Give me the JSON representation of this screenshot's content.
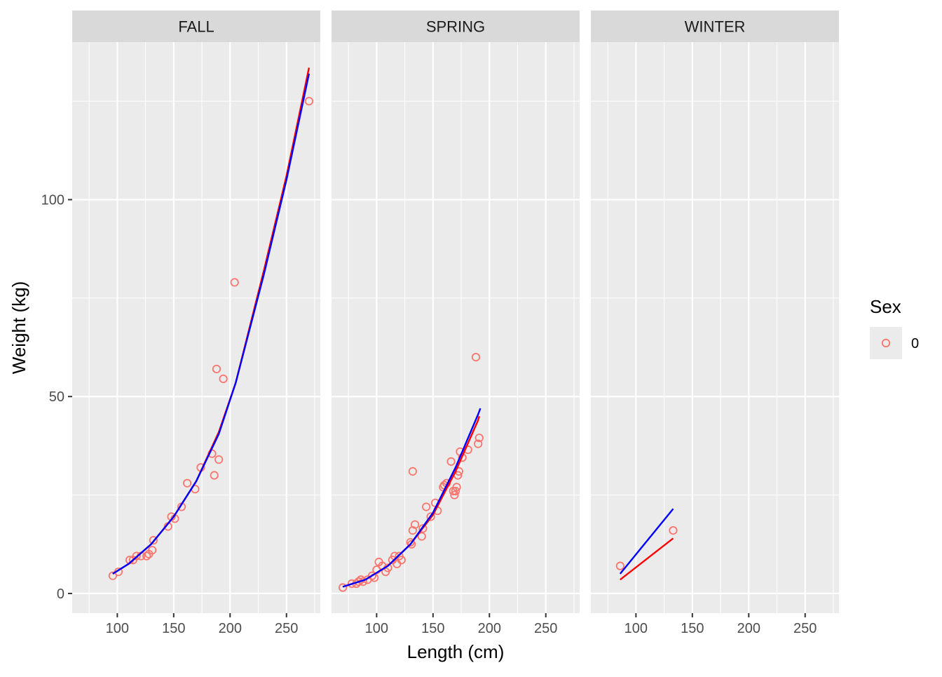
{
  "chart_data": {
    "type": "scatter",
    "xlabel": "Length (cm)",
    "ylabel": "Weight (kg)",
    "xlim": [
      60,
      280
    ],
    "ylim": [
      -5,
      140
    ],
    "x_ticks": [
      100,
      150,
      200,
      250
    ],
    "y_ticks": [
      0,
      50,
      100
    ],
    "grid": true,
    "legend": {
      "title": "Sex",
      "position": "right",
      "entries": [
        {
          "label": "0",
          "color": "#F8766D",
          "shape": "open-circle"
        }
      ]
    },
    "colors": {
      "points": "#F8766D",
      "line_red": "#FF0000",
      "line_blue": "#0000FF",
      "panel_bg": "#EBEBEB",
      "strip_bg": "#D9D9D9"
    },
    "panels": [
      {
        "title": "FALL",
        "points": [
          [
            96,
            4.5
          ],
          [
            101,
            5.5
          ],
          [
            111,
            8.5
          ],
          [
            114,
            8.5
          ],
          [
            117,
            9.5
          ],
          [
            121,
            9.5
          ],
          [
            126,
            9.5
          ],
          [
            128,
            10
          ],
          [
            131,
            11
          ],
          [
            132,
            13.5
          ],
          [
            145,
            17
          ],
          [
            148,
            19.5
          ],
          [
            151,
            19
          ],
          [
            157,
            22
          ],
          [
            162,
            28
          ],
          [
            169,
            26.5
          ],
          [
            174,
            32
          ],
          [
            184,
            35.5
          ],
          [
            186,
            30
          ],
          [
            188,
            57
          ],
          [
            190,
            34
          ],
          [
            194,
            54.5
          ],
          [
            204,
            79
          ],
          [
            270,
            125
          ]
        ],
        "red_curve": [
          [
            96,
            5
          ],
          [
            110,
            7.5
          ],
          [
            130,
            12.5
          ],
          [
            150,
            19.5
          ],
          [
            170,
            28.5
          ],
          [
            190,
            41
          ],
          [
            205,
            53.5
          ],
          [
            230,
            82
          ],
          [
            250,
            106
          ],
          [
            270,
            133.5
          ]
        ],
        "blue_curve": [
          [
            96,
            5
          ],
          [
            110,
            7.5
          ],
          [
            130,
            12.5
          ],
          [
            150,
            19.5
          ],
          [
            170,
            28.5
          ],
          [
            190,
            40.5
          ],
          [
            205,
            53.5
          ],
          [
            230,
            81
          ],
          [
            250,
            105
          ],
          [
            270,
            132
          ]
        ]
      },
      {
        "title": "SPRING",
        "points": [
          [
            70,
            1.5
          ],
          [
            78,
            2.5
          ],
          [
            82,
            2.5
          ],
          [
            84,
            3
          ],
          [
            86,
            3.5
          ],
          [
            88,
            3
          ],
          [
            92,
            3.5
          ],
          [
            96,
            4.5
          ],
          [
            98,
            4
          ],
          [
            100,
            6
          ],
          [
            102,
            8
          ],
          [
            105,
            7
          ],
          [
            108,
            5.5
          ],
          [
            110,
            6.5
          ],
          [
            114,
            8.5
          ],
          [
            116,
            9.5
          ],
          [
            118,
            7.5
          ],
          [
            120,
            9.5
          ],
          [
            122,
            8.5
          ],
          [
            130,
            13
          ],
          [
            131,
            12.5
          ],
          [
            132,
            16
          ],
          [
            132,
            31
          ],
          [
            134,
            17.5
          ],
          [
            140,
            14.5
          ],
          [
            141,
            16.5
          ],
          [
            144,
            22
          ],
          [
            148,
            19.5
          ],
          [
            152,
            23
          ],
          [
            154,
            21
          ],
          [
            159,
            27
          ],
          [
            160,
            27.5
          ],
          [
            162,
            28
          ],
          [
            166,
            33.5
          ],
          [
            168,
            26
          ],
          [
            169,
            25
          ],
          [
            170,
            26
          ],
          [
            171,
            27
          ],
          [
            172,
            30
          ],
          [
            173,
            31
          ],
          [
            174,
            36
          ],
          [
            176,
            34.5
          ],
          [
            181,
            36.5
          ],
          [
            188,
            60
          ],
          [
            190,
            38
          ],
          [
            191,
            39.5
          ]
        ],
        "red_curve": [
          [
            70,
            1.7
          ],
          [
            90,
            3.5
          ],
          [
            110,
            7
          ],
          [
            130,
            12.5
          ],
          [
            150,
            20
          ],
          [
            170,
            31
          ],
          [
            190,
            44
          ],
          [
            191,
            45
          ]
        ],
        "blue_curve": [
          [
            70,
            1.7
          ],
          [
            90,
            3.5
          ],
          [
            110,
            7
          ],
          [
            130,
            12.5
          ],
          [
            150,
            20.5
          ],
          [
            170,
            32
          ],
          [
            190,
            45.5
          ],
          [
            192,
            47
          ]
        ]
      },
      {
        "title": "WINTER",
        "points": [
          [
            86,
            7
          ],
          [
            133,
            16
          ]
        ],
        "red_curve": [
          [
            86,
            3.5
          ],
          [
            133,
            14
          ]
        ],
        "blue_curve": [
          [
            86,
            5
          ],
          [
            133,
            21.5
          ]
        ]
      }
    ]
  }
}
